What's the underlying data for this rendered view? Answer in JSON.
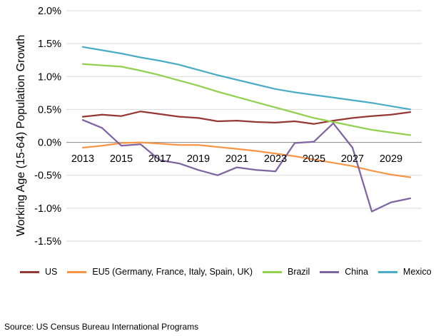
{
  "chart_data": {
    "type": "line",
    "title": "",
    "xlabel": "",
    "ylabel": "Working Age (15-64) Population Growth",
    "x": [
      2013,
      2014,
      2015,
      2016,
      2017,
      2018,
      2019,
      2020,
      2021,
      2022,
      2023,
      2024,
      2025,
      2026,
      2027,
      2028,
      2029,
      2030
    ],
    "xticks": [
      2013,
      2015,
      2017,
      2019,
      2021,
      2023,
      2025,
      2027,
      2029
    ],
    "yticks": [
      2.0,
      1.5,
      1.0,
      0.5,
      0.0,
      -0.5,
      -1.0,
      -1.5
    ],
    "ylim": [
      -1.5,
      2.0
    ],
    "y_format": "percent",
    "grid": "horizontal",
    "legend_position": "bottom",
    "series": [
      {
        "name": "US",
        "color": "#953735",
        "values": [
          0.39,
          0.42,
          0.4,
          0.47,
          0.43,
          0.39,
          0.37,
          0.32,
          0.33,
          0.31,
          0.3,
          0.32,
          0.28,
          0.33,
          0.37,
          0.4,
          0.42,
          0.46
        ]
      },
      {
        "name": "EU5 (Germany, France, Italy, Spain, UK)",
        "color": "#F79646",
        "values": [
          -0.08,
          -0.05,
          -0.01,
          0.0,
          -0.02,
          -0.04,
          -0.04,
          -0.07,
          -0.1,
          -0.13,
          -0.17,
          -0.21,
          -0.26,
          -0.31,
          -0.36,
          -0.43,
          -0.49,
          -0.53
        ]
      },
      {
        "name": "Brazil",
        "color": "#92D050",
        "values": [
          1.19,
          1.17,
          1.15,
          1.09,
          1.02,
          0.94,
          0.86,
          0.77,
          0.69,
          0.61,
          0.53,
          0.45,
          0.37,
          0.31,
          0.25,
          0.19,
          0.15,
          0.11
        ]
      },
      {
        "name": "China",
        "color": "#8064A2",
        "values": [
          0.34,
          0.22,
          -0.05,
          -0.03,
          -0.27,
          -0.32,
          -0.42,
          -0.5,
          -0.38,
          -0.42,
          -0.44,
          -0.01,
          0.01,
          0.29,
          -0.08,
          -1.05,
          -0.91,
          -0.85
        ]
      },
      {
        "name": "Mexico",
        "color": "#4BACC6",
        "values": [
          1.45,
          1.4,
          1.35,
          1.29,
          1.24,
          1.18,
          1.1,
          1.02,
          0.95,
          0.88,
          0.81,
          0.76,
          0.72,
          0.68,
          0.64,
          0.6,
          0.55,
          0.5
        ]
      }
    ]
  },
  "source": "Source: US Census Bureau International Programs"
}
